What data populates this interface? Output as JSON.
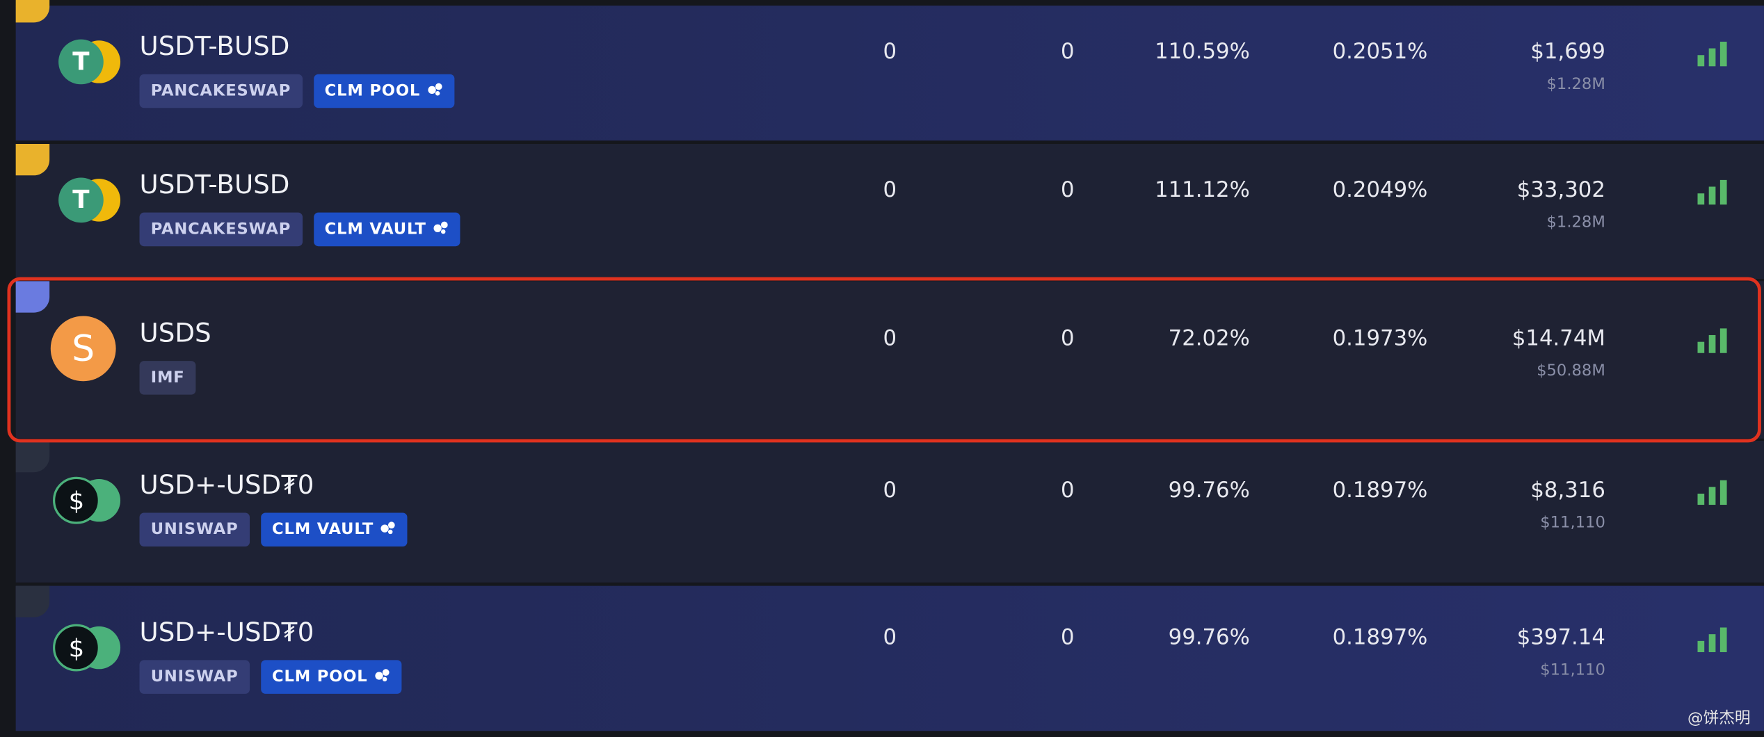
{
  "rows": [
    {
      "name": "USDT-BUSD",
      "tags": [
        "PANCAKESWAP",
        "CLM POOL"
      ],
      "col1": "0",
      "col2": "0",
      "apy": "110.59%",
      "daily": "0.2051%",
      "tvl": "$1,699",
      "tvl_sub": "$1.28M"
    },
    {
      "name": "USDT-BUSD",
      "tags": [
        "PANCAKESWAP",
        "CLM VAULT"
      ],
      "col1": "0",
      "col2": "0",
      "apy": "111.12%",
      "daily": "0.2049%",
      "tvl": "$33,302",
      "tvl_sub": "$1.28M"
    },
    {
      "name": "USDS",
      "tags": [
        "IMF"
      ],
      "col1": "0",
      "col2": "0",
      "apy": "72.02%",
      "daily": "0.1973%",
      "tvl": "$14.74M",
      "tvl_sub": "$50.88M"
    },
    {
      "name": "USD+-USD₮0",
      "tags": [
        "UNISWAP",
        "CLM VAULT"
      ],
      "col1": "0",
      "col2": "0",
      "apy": "99.76%",
      "daily": "0.1897%",
      "tvl": "$8,316",
      "tvl_sub": "$11,110"
    },
    {
      "name": "USD+-USD₮0",
      "tags": [
        "UNISWAP",
        "CLM POOL"
      ],
      "col1": "0",
      "col2": "0",
      "apy": "99.76%",
      "daily": "0.1897%",
      "tvl": "$397.14",
      "tvl_sub": "$11,110"
    }
  ],
  "watermark": "@饼杰明"
}
